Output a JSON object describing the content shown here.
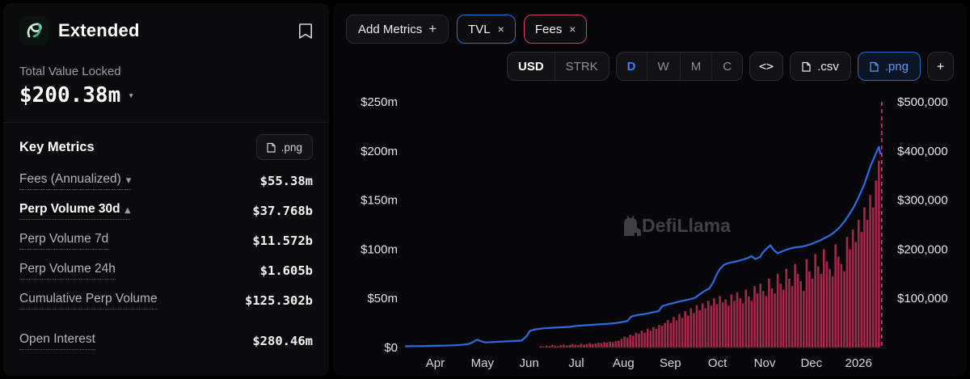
{
  "brand": {
    "name": "Extended"
  },
  "icons": {
    "plus": "+",
    "close": "×",
    "chevron_down": "▾",
    "chevron_up": "▴",
    "embed": "<>"
  },
  "sidebar": {
    "tvl_label": "Total Value Locked",
    "tvl_value": "$200.38m",
    "key_metrics_title": "Key Metrics",
    "png_button": ".png",
    "metrics": [
      {
        "label": "Fees (Annualized)",
        "value": "$55.38m",
        "chevron": "down"
      },
      {
        "label": "Perp Volume 30d",
        "value": "$37.768b",
        "chevron": "up",
        "active": true
      },
      {
        "label": "Perp Volume 7d",
        "value": "$11.572b"
      },
      {
        "label": "Perp Volume 24h",
        "value": "$1.605b"
      },
      {
        "label": "Cumulative Perp Volume",
        "value": "$125.302b"
      },
      {
        "label": "Open Interest",
        "value": "$280.46m"
      }
    ]
  },
  "toolbar": {
    "add_metrics": "Add Metrics",
    "pills": [
      {
        "label": "TVL",
        "color": "#2172e5"
      },
      {
        "label": "Fees",
        "color": "#e0356d"
      }
    ],
    "currency": [
      "USD",
      "STRK"
    ],
    "currency_active": "USD",
    "intervals": [
      "D",
      "W",
      "M",
      "C"
    ],
    "interval_active": "D",
    "csv": ".csv",
    "png": ".png"
  },
  "watermark": "DefiLlama",
  "chart_data": {
    "type": "line+bar",
    "title": "TVL and Fees over time",
    "legend_position": "top-pills",
    "grid": false,
    "left_axis": {
      "unit": "USD millions",
      "range": [
        0,
        250
      ],
      "ticks": [
        {
          "v": 0,
          "label": "$0"
        },
        {
          "v": 50,
          "label": "$50m"
        },
        {
          "v": 100,
          "label": "$100m"
        },
        {
          "v": 150,
          "label": "$150m"
        },
        {
          "v": 200,
          "label": "$200m"
        },
        {
          "v": 250,
          "label": "$250m"
        }
      ]
    },
    "right_axis": {
      "unit": "USD thousands",
      "range": [
        0,
        500
      ],
      "ticks": [
        {
          "v": 100,
          "label": "$100,000"
        },
        {
          "v": 200,
          "label": "$200,000"
        },
        {
          "v": 300,
          "label": "$300,000"
        },
        {
          "v": 400,
          "label": "$400,000"
        },
        {
          "v": 500,
          "label": "$500,000"
        }
      ]
    },
    "x_axis": {
      "range": [
        "Apr 2025",
        "Jan 2026"
      ],
      "ticks": [
        {
          "t": 0.061,
          "label": "Apr"
        },
        {
          "t": 0.159,
          "label": "May"
        },
        {
          "t": 0.256,
          "label": "Jun"
        },
        {
          "t": 0.354,
          "label": "Jul"
        },
        {
          "t": 0.452,
          "label": "Aug"
        },
        {
          "t": 0.549,
          "label": "Sep"
        },
        {
          "t": 0.647,
          "label": "Oct"
        },
        {
          "t": 0.745,
          "label": "Nov"
        },
        {
          "t": 0.842,
          "label": "Dec"
        },
        {
          "t": 0.94,
          "label": "2026"
        }
      ]
    },
    "marker_line": {
      "t": 0.988,
      "style": "dashed",
      "color": "#d23b72"
    },
    "series": [
      {
        "name": "TVL",
        "type": "line",
        "axis": "left",
        "unit": "USD millions",
        "color": "#2e6be2",
        "points": [
          [
            0.0,
            1.2
          ],
          [
            0.02,
            1.4
          ],
          [
            0.04,
            1.5
          ],
          [
            0.06,
            1.7
          ],
          [
            0.08,
            1.9
          ],
          [
            0.1,
            2.2
          ],
          [
            0.115,
            2.6
          ],
          [
            0.13,
            3.5
          ],
          [
            0.14,
            5.5
          ],
          [
            0.148,
            8.0
          ],
          [
            0.155,
            6.5
          ],
          [
            0.165,
            5.2
          ],
          [
            0.18,
            5.5
          ],
          [
            0.2,
            6.0
          ],
          [
            0.22,
            6.5
          ],
          [
            0.24,
            7.0
          ],
          [
            0.25,
            11.0
          ],
          [
            0.258,
            17.0
          ],
          [
            0.27,
            18.5
          ],
          [
            0.285,
            19.5
          ],
          [
            0.3,
            20.0
          ],
          [
            0.32,
            20.5
          ],
          [
            0.34,
            21.0
          ],
          [
            0.355,
            22.0
          ],
          [
            0.37,
            22.5
          ],
          [
            0.385,
            23.0
          ],
          [
            0.4,
            23.5
          ],
          [
            0.415,
            24.0
          ],
          [
            0.43,
            24.5
          ],
          [
            0.445,
            25.5
          ],
          [
            0.46,
            27.0
          ],
          [
            0.468,
            31.5
          ],
          [
            0.48,
            33.0
          ],
          [
            0.495,
            34.0
          ],
          [
            0.51,
            35.5
          ],
          [
            0.525,
            37.0
          ],
          [
            0.532,
            42.0
          ],
          [
            0.545,
            44.0
          ],
          [
            0.558,
            45.5
          ],
          [
            0.57,
            47.0
          ],
          [
            0.585,
            48.5
          ],
          [
            0.6,
            50.5
          ],
          [
            0.61,
            54.0
          ],
          [
            0.62,
            57.5
          ],
          [
            0.63,
            60.0
          ],
          [
            0.638,
            66.0
          ],
          [
            0.645,
            74.0
          ],
          [
            0.652,
            80.0
          ],
          [
            0.66,
            84.0
          ],
          [
            0.67,
            86.0
          ],
          [
            0.68,
            87.0
          ],
          [
            0.69,
            88.0
          ],
          [
            0.7,
            89.5
          ],
          [
            0.71,
            91.0
          ],
          [
            0.718,
            93.0
          ],
          [
            0.725,
            90.0
          ],
          [
            0.735,
            92.0
          ],
          [
            0.742,
            97.0
          ],
          [
            0.75,
            101.0
          ],
          [
            0.757,
            104.0
          ],
          [
            0.764,
            99.0
          ],
          [
            0.772,
            96.0
          ],
          [
            0.78,
            97.5
          ],
          [
            0.79,
            99.5
          ],
          [
            0.8,
            101.0
          ],
          [
            0.81,
            102.0
          ],
          [
            0.82,
            102.5
          ],
          [
            0.83,
            103.5
          ],
          [
            0.84,
            105.0
          ],
          [
            0.85,
            107.0
          ],
          [
            0.86,
            109.0
          ],
          [
            0.87,
            111.5
          ],
          [
            0.88,
            114.0
          ],
          [
            0.89,
            117.5
          ],
          [
            0.9,
            122.0
          ],
          [
            0.91,
            128.0
          ],
          [
            0.92,
            135.0
          ],
          [
            0.93,
            143.0
          ],
          [
            0.94,
            153.0
          ],
          [
            0.95,
            164.0
          ],
          [
            0.958,
            175.0
          ],
          [
            0.965,
            185.0
          ],
          [
            0.972,
            193.0
          ],
          [
            0.978,
            200.0
          ],
          [
            0.982,
            204.0
          ],
          [
            0.985,
            197.0
          ]
        ]
      },
      {
        "name": "Fees",
        "type": "bar",
        "axis": "right",
        "unit": "USD thousands",
        "color": "#ad2950",
        "points": [
          [
            0.28,
            3
          ],
          [
            0.286,
            2
          ],
          [
            0.292,
            4
          ],
          [
            0.298,
            3
          ],
          [
            0.304,
            5
          ],
          [
            0.31,
            4
          ],
          [
            0.316,
            3
          ],
          [
            0.322,
            5
          ],
          [
            0.328,
            6
          ],
          [
            0.334,
            4
          ],
          [
            0.34,
            5
          ],
          [
            0.346,
            7
          ],
          [
            0.352,
            6
          ],
          [
            0.358,
            5
          ],
          [
            0.364,
            8
          ],
          [
            0.37,
            6
          ],
          [
            0.376,
            7
          ],
          [
            0.382,
            9
          ],
          [
            0.388,
            7
          ],
          [
            0.394,
            8
          ],
          [
            0.4,
            10
          ],
          [
            0.406,
            9
          ],
          [
            0.412,
            11
          ],
          [
            0.418,
            10
          ],
          [
            0.424,
            12
          ],
          [
            0.43,
            11
          ],
          [
            0.436,
            13
          ],
          [
            0.442,
            14
          ],
          [
            0.448,
            18
          ],
          [
            0.454,
            22
          ],
          [
            0.46,
            20
          ],
          [
            0.466,
            26
          ],
          [
            0.472,
            24
          ],
          [
            0.478,
            30
          ],
          [
            0.484,
            28
          ],
          [
            0.49,
            34
          ],
          [
            0.496,
            30
          ],
          [
            0.502,
            38
          ],
          [
            0.508,
            34
          ],
          [
            0.514,
            42
          ],
          [
            0.52,
            38
          ],
          [
            0.526,
            46
          ],
          [
            0.532,
            44
          ],
          [
            0.538,
            50
          ],
          [
            0.544,
            56
          ],
          [
            0.55,
            50
          ],
          [
            0.556,
            62
          ],
          [
            0.562,
            55
          ],
          [
            0.568,
            68
          ],
          [
            0.574,
            60
          ],
          [
            0.58,
            74
          ],
          [
            0.586,
            65
          ],
          [
            0.592,
            80
          ],
          [
            0.598,
            70
          ],
          [
            0.604,
            86
          ],
          [
            0.61,
            76
          ],
          [
            0.616,
            90
          ],
          [
            0.622,
            80
          ],
          [
            0.628,
            95
          ],
          [
            0.634,
            85
          ],
          [
            0.64,
            100
          ],
          [
            0.646,
            88
          ],
          [
            0.652,
            105
          ],
          [
            0.658,
            92
          ],
          [
            0.664,
            98
          ],
          [
            0.67,
            85
          ],
          [
            0.676,
            108
          ],
          [
            0.682,
            95
          ],
          [
            0.688,
            112
          ],
          [
            0.694,
            100
          ],
          [
            0.7,
            90
          ],
          [
            0.706,
            118
          ],
          [
            0.712,
            104
          ],
          [
            0.718,
            95
          ],
          [
            0.724,
            125
          ],
          [
            0.73,
            110
          ],
          [
            0.736,
            130
          ],
          [
            0.742,
            115
          ],
          [
            0.748,
            105
          ],
          [
            0.754,
            140
          ],
          [
            0.76,
            120
          ],
          [
            0.766,
            110
          ],
          [
            0.772,
            150
          ],
          [
            0.778,
            130
          ],
          [
            0.784,
            118
          ],
          [
            0.79,
            160
          ],
          [
            0.796,
            140
          ],
          [
            0.802,
            125
          ],
          [
            0.808,
            170
          ],
          [
            0.814,
            150
          ],
          [
            0.82,
            135
          ],
          [
            0.826,
            115
          ],
          [
            0.832,
            180
          ],
          [
            0.838,
            155
          ],
          [
            0.844,
            140
          ],
          [
            0.85,
            190
          ],
          [
            0.856,
            165
          ],
          [
            0.862,
            150
          ],
          [
            0.868,
            200
          ],
          [
            0.874,
            175
          ],
          [
            0.88,
            160
          ],
          [
            0.886,
            145
          ],
          [
            0.892,
            210
          ],
          [
            0.898,
            185
          ],
          [
            0.904,
            170
          ],
          [
            0.91,
            155
          ],
          [
            0.916,
            225
          ],
          [
            0.922,
            200
          ],
          [
            0.928,
            240
          ],
          [
            0.934,
            215
          ],
          [
            0.94,
            260
          ],
          [
            0.946,
            235
          ],
          [
            0.952,
            285
          ],
          [
            0.958,
            260
          ],
          [
            0.964,
            310
          ],
          [
            0.97,
            285
          ],
          [
            0.976,
            340
          ],
          [
            0.982,
            380
          ]
        ]
      }
    ]
  }
}
